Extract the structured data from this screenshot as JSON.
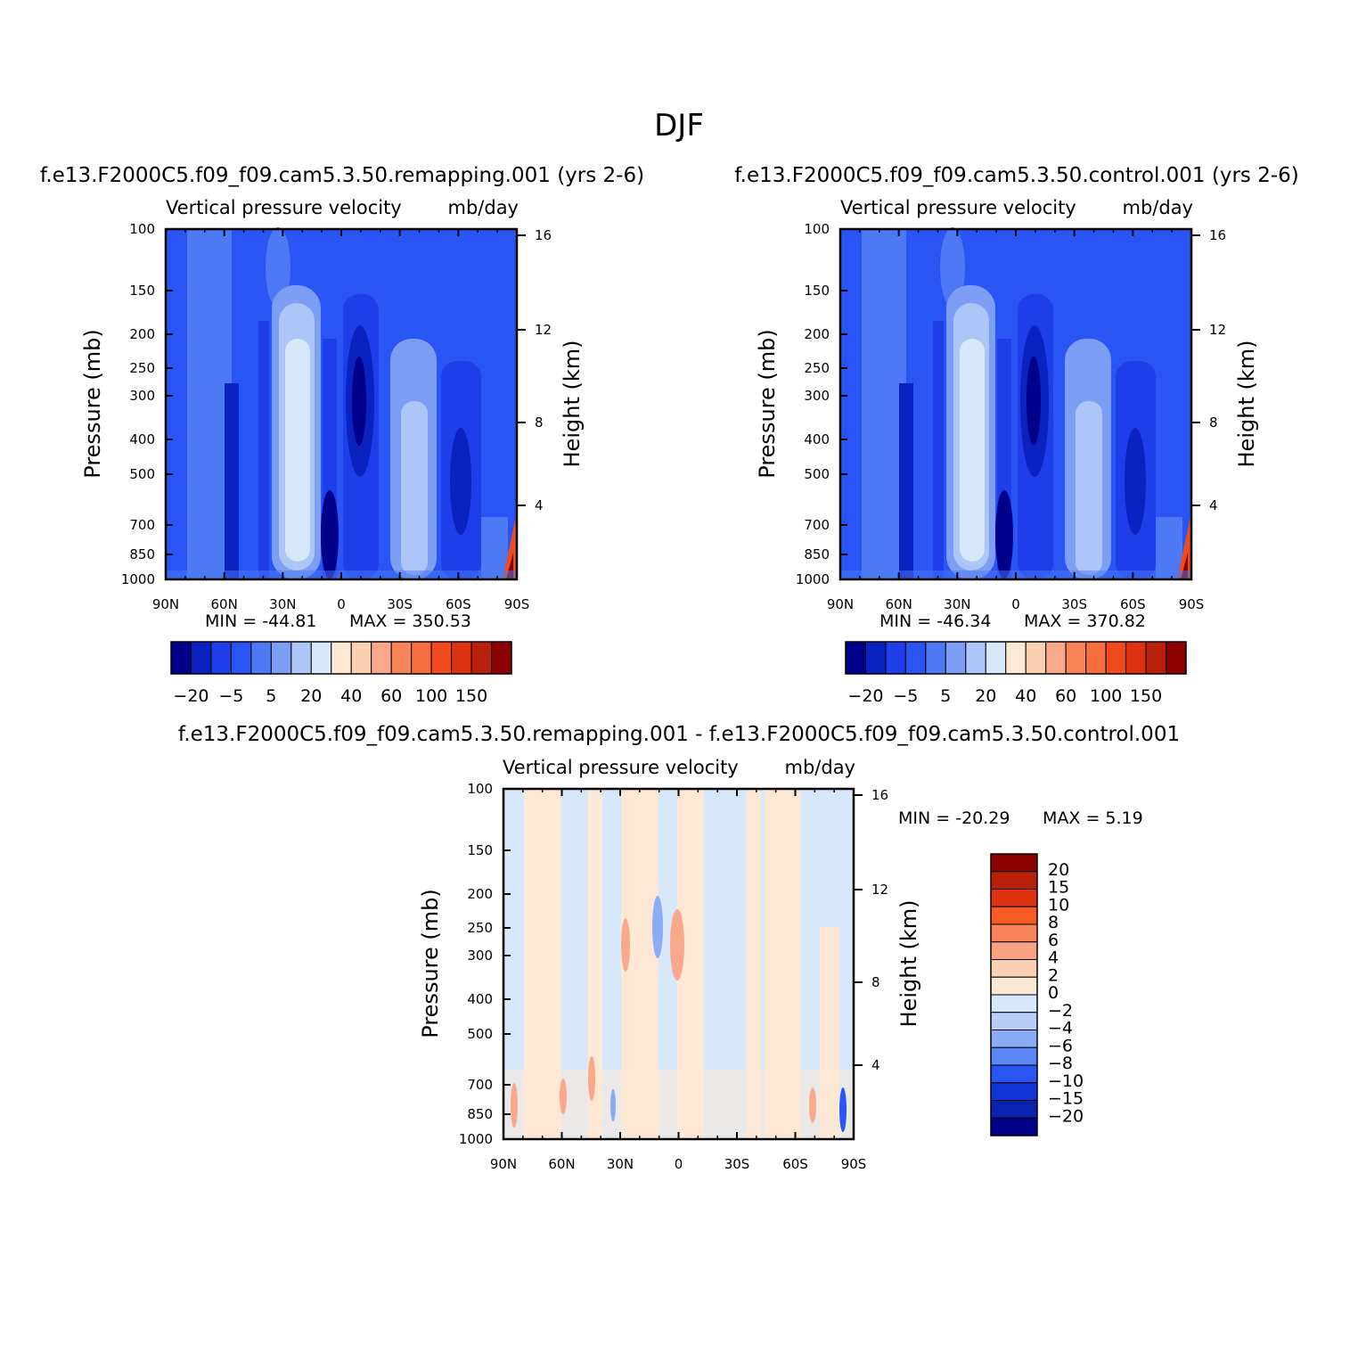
{
  "title": "DJF",
  "chart_data": [
    {
      "type": "heatmap",
      "title": "f.e13.F2000C5.f09_f09.cam5.3.50.remapping.001  (yrs 2-6)",
      "subtitle_left": "Vertical pressure velocity",
      "subtitle_right": "mb/day",
      "xlabel": "",
      "ylabel": "Pressure (mb)",
      "ylabel_right": "Height (km)",
      "x_ticks": [
        "90N",
        "60N",
        "30N",
        "0",
        "30S",
        "60S",
        "90S"
      ],
      "y_ticks": [
        "100",
        "150",
        "200",
        "250",
        "300",
        "400",
        "500",
        "700",
        "850",
        "1000"
      ],
      "y_ticks_right": [
        "16",
        "12",
        "8",
        "4"
      ],
      "min_label": "MIN = -44.81",
      "max_label": "MAX = 350.53",
      "colorbar_labels": [
        "-20",
        "-5",
        "5",
        "20",
        "40",
        "60",
        "100",
        "150"
      ]
    },
    {
      "type": "heatmap",
      "title": "f.e13.F2000C5.f09_f09.cam5.3.50.control.001  (yrs 2-6)",
      "subtitle_left": "Vertical pressure velocity",
      "subtitle_right": "mb/day",
      "xlabel": "",
      "ylabel": "Pressure (mb)",
      "ylabel_right": "Height (km)",
      "x_ticks": [
        "90N",
        "60N",
        "30N",
        "0",
        "30S",
        "60S",
        "90S"
      ],
      "y_ticks": [
        "100",
        "150",
        "200",
        "250",
        "300",
        "400",
        "500",
        "700",
        "850",
        "1000"
      ],
      "y_ticks_right": [
        "16",
        "12",
        "8",
        "4"
      ],
      "min_label": "MIN = -46.34",
      "max_label": "MAX = 370.82",
      "colorbar_labels": [
        "-20",
        "-5",
        "5",
        "20",
        "40",
        "60",
        "100",
        "150"
      ]
    },
    {
      "type": "heatmap",
      "title": "f.e13.F2000C5.f09_f09.cam5.3.50.remapping.001 - f.e13.F2000C5.f09_f09.cam5.3.50.control.001",
      "subtitle_left": "Vertical pressure velocity",
      "subtitle_right": "mb/day",
      "xlabel": "",
      "ylabel": "Pressure (mb)",
      "ylabel_right": "Height (km)",
      "x_ticks": [
        "90N",
        "60N",
        "30N",
        "0",
        "30S",
        "60S",
        "90S"
      ],
      "y_ticks": [
        "100",
        "150",
        "200",
        "250",
        "300",
        "400",
        "500",
        "700",
        "850",
        "1000"
      ],
      "y_ticks_right": [
        "16",
        "12",
        "8",
        "4"
      ],
      "min_label": "MIN = -20.29",
      "max_label": "MAX =    5.19",
      "colorbar_labels": [
        "20",
        "15",
        "10",
        "8",
        "6",
        "4",
        "2",
        "0",
        "-2",
        "-4",
        "-6",
        "-8",
        "-10",
        "-15",
        "-20"
      ]
    }
  ],
  "colors": {
    "cool": [
      "#00008b",
      "#0a23c0",
      "#1d3ee8",
      "#2a55f5",
      "#4d79f5",
      "#7d9ef5",
      "#aec5f7",
      "#d8e8fb"
    ],
    "warm": [
      "#fde8d6",
      "#fbcfb2",
      "#f9a98a",
      "#f78356",
      "#f66e3e",
      "#ef4b1c",
      "#dd3210",
      "#b9200a",
      "#8b0000"
    ],
    "diff": [
      "#8b0000",
      "#b9200a",
      "#dd3210",
      "#f75a22",
      "#f7835a",
      "#f8a282",
      "#fbcfb2",
      "#fde8d6",
      "#d8e8fb",
      "#b5cdf7",
      "#8cabf5",
      "#5b86f5",
      "#2a55f5",
      "#0f35d6",
      "#0a22b0",
      "#00008b"
    ]
  }
}
